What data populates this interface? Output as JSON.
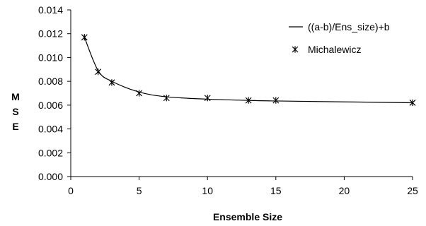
{
  "chart_data": {
    "type": "line",
    "xlabel": "Ensemble Size",
    "ylabel": [
      "M",
      "S",
      "E"
    ],
    "xlim": [
      0,
      25
    ],
    "ylim": [
      0,
      0.014
    ],
    "x_ticks": [
      0,
      5,
      10,
      15,
      20,
      25
    ],
    "y_ticks": [
      0.0,
      0.002,
      0.004,
      0.006,
      0.008,
      0.01,
      0.012,
      0.014
    ],
    "y_tick_labels": [
      "0.000",
      "0.002",
      "0.004",
      "0.006",
      "0.008",
      "0.010",
      "0.012",
      "0.014"
    ],
    "x_tick_labels": [
      "0",
      "5",
      "10",
      "15",
      "20",
      "25"
    ],
    "grid": false,
    "legend_position": "top-right",
    "series": [
      {
        "name": "((a-b)/Ens_size)+b",
        "kind": "line",
        "color": "#000000",
        "x": [
          1,
          2,
          3,
          5,
          7,
          10,
          13,
          15,
          25
        ],
        "y": [
          0.0117,
          0.0089,
          0.008,
          0.0071,
          0.0067,
          0.0065,
          0.0064,
          0.00635,
          0.0062
        ]
      },
      {
        "name": "Michalewicz",
        "kind": "markers",
        "marker": "asterisk",
        "color": "#000000",
        "x": [
          1,
          2,
          3,
          5,
          7,
          10,
          13,
          15,
          25
        ],
        "y": [
          0.0117,
          0.0088,
          0.0079,
          0.007,
          0.0066,
          0.0066,
          0.0064,
          0.0064,
          0.0062
        ]
      }
    ]
  }
}
